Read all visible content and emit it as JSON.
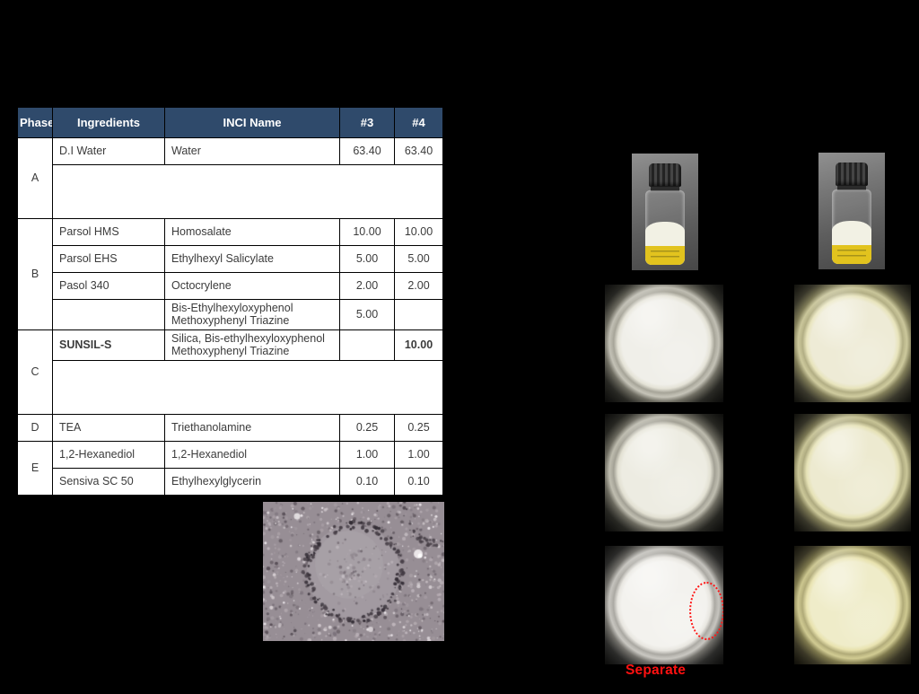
{
  "table": {
    "headers": [
      "Phase",
      "Ingredients",
      "INCI Name",
      "#3",
      "#4"
    ],
    "rows": [
      {
        "phase": "A",
        "ingredient": "D.I Water",
        "inci": "Water",
        "v3": "63.40",
        "v4": "63.40"
      },
      {
        "phase": "A",
        "redacted": true
      },
      {
        "phase": "B",
        "ingredient": "Parsol HMS",
        "inci": "Homosalate",
        "v3": "10.00",
        "v4": "10.00"
      },
      {
        "phase": "B",
        "ingredient": "Parsol EHS",
        "inci": "Ethylhexyl Salicylate",
        "v3": "5.00",
        "v4": "5.00"
      },
      {
        "phase": "B",
        "ingredient": "Pasol 340",
        "inci": "Octocrylene",
        "v3": "2.00",
        "v4": "2.00"
      },
      {
        "phase": "B",
        "ingredient": "",
        "inci": "Bis-Ethylhexyloxyphenol Methoxyphenyl Triazine",
        "v3": "5.00",
        "v4": "",
        "v3_highlight": "orange"
      },
      {
        "phase": "C",
        "ingredient": "SUNSIL-S",
        "inci": "Silica, Bis-ethylhexyloxyphenol Methoxyphenyl Triazine",
        "v3": "",
        "v4": "10.00",
        "highlight": "green"
      },
      {
        "phase": "C",
        "redacted": true
      },
      {
        "phase": "D",
        "ingredient": "TEA",
        "inci": "Triethanolamine",
        "v3": "0.25",
        "v4": "0.25"
      },
      {
        "phase": "E",
        "ingredient": "1,2-Hexanediol",
        "inci": "1,2-Hexanediol",
        "v3": "1.00",
        "v4": "1.00"
      },
      {
        "phase": "E",
        "ingredient": "Sensiva SC 50",
        "inci": "Ethylhexylglycerin",
        "v3": "0.10",
        "v4": "0.10"
      }
    ]
  },
  "annotations": {
    "separate_label": "Separate"
  },
  "colors": {
    "slide_background": "#000000",
    "table_header_bg": "#2F4A6B",
    "table_header_text": "#FFFFFF",
    "orange_highlight": "#F07D1E",
    "green_highlight": "#BCDAA0",
    "separate_red": "#FF1111",
    "annotation_ellipse_red": "#FF1818",
    "vial_label_yellow": "#E2C31E",
    "cream_sample_3": "#F0EFE8",
    "cream_sample_4": "#EFECC9"
  }
}
